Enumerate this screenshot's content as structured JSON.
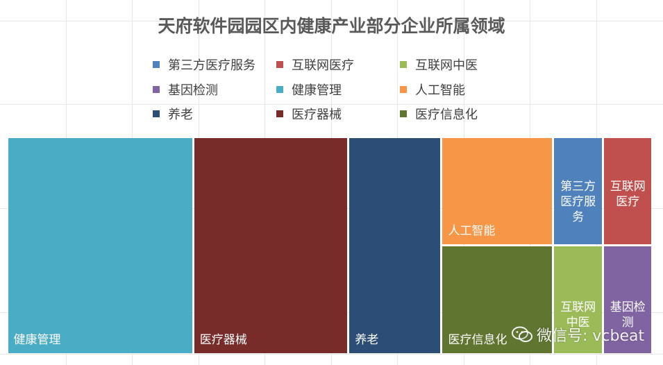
{
  "chart_data": {
    "type": "treemap",
    "title": "天府软件园园区内健康产业部分企业所属领域",
    "legend": [
      {
        "label": "第三方医疗服务",
        "color": "#4f81bd"
      },
      {
        "label": "互联网医疗",
        "color": "#c0504d"
      },
      {
        "label": "互联网中医",
        "color": "#9bbb59"
      },
      {
        "label": "基因检测",
        "color": "#8064a2"
      },
      {
        "label": "健康管理",
        "color": "#4bacc6"
      },
      {
        "label": "人工智能",
        "color": "#f79646"
      },
      {
        "label": "养老",
        "color": "#2c4d75"
      },
      {
        "label": "医疗器械",
        "color": "#772c2a"
      },
      {
        "label": "医疗信息化",
        "color": "#5f7530"
      }
    ],
    "tiles": [
      {
        "label": "健康管理",
        "value": 9.0,
        "color": "#4bacc6"
      },
      {
        "label": "医疗器械",
        "value": 7.5,
        "color": "#772c2a"
      },
      {
        "label": "养老",
        "value": 4.5,
        "color": "#2c4d75"
      },
      {
        "label": "人工智能",
        "value": 2.7,
        "color": "#f79646"
      },
      {
        "label": "医疗信息化",
        "value": 2.7,
        "color": "#5f7530"
      },
      {
        "label": "第三方医疗服务",
        "value": 1.2,
        "color": "#4f81bd"
      },
      {
        "label": "互联网中医",
        "value": 1.2,
        "color": "#9bbb59"
      },
      {
        "label": "互联网医疗",
        "value": 1.2,
        "color": "#c0504d"
      },
      {
        "label": "基因检测",
        "value": 1.2,
        "color": "#8064a2"
      }
    ]
  },
  "watermark": {
    "text": "微信号: vcbeat"
  }
}
